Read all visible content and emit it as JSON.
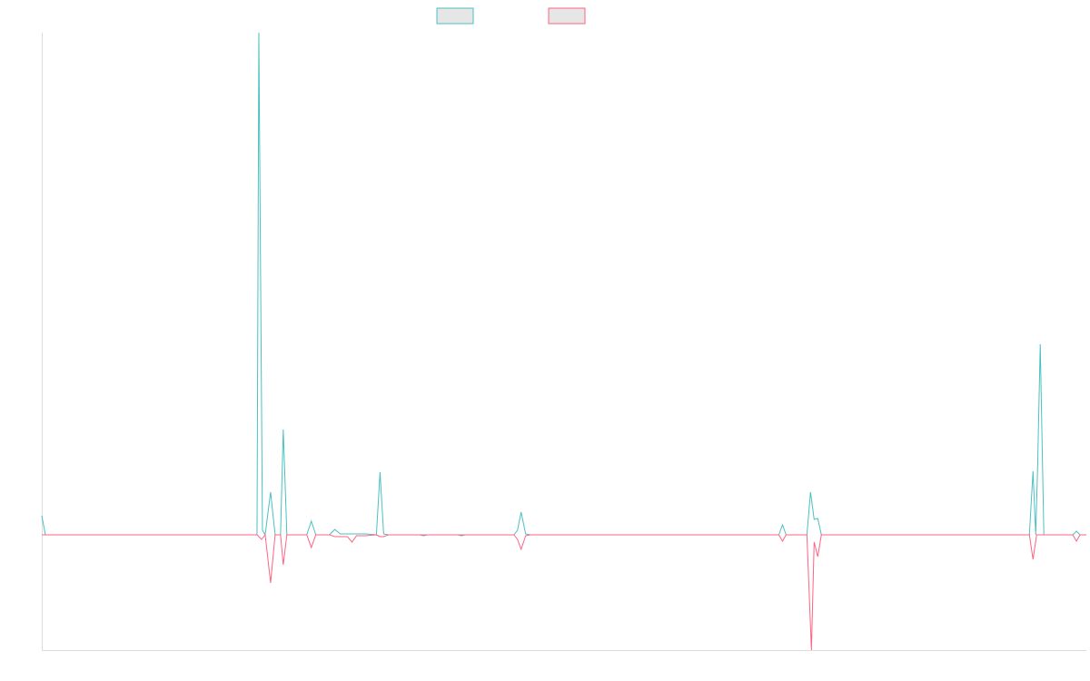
{
  "chart_data": {
    "type": "line",
    "title": "",
    "xlabel": "",
    "ylabel": "",
    "legend": {
      "placement": "top-center",
      "entries": [
        "",
        ""
      ]
    },
    "grid": false,
    "x": [
      0,
      1,
      2,
      3,
      4,
      5,
      6,
      7,
      8,
      9,
      10,
      11,
      12,
      13,
      14,
      15,
      16,
      17,
      18,
      19,
      20,
      21,
      22,
      23,
      24,
      25,
      26,
      27,
      28,
      29,
      30,
      31,
      32,
      33,
      34,
      35,
      36,
      37,
      38,
      39,
      40,
      41,
      42,
      43,
      44,
      45,
      46,
      47,
      48,
      49,
      50,
      51,
      52,
      53,
      54,
      55,
      56,
      57,
      58,
      59,
      60,
      61,
      62,
      63,
      64,
      65,
      66,
      67,
      68,
      69,
      70,
      71,
      72,
      73,
      74,
      75,
      76,
      77,
      78,
      79,
      80,
      81,
      82,
      83,
      84,
      85,
      86,
      87,
      88,
      89,
      90,
      91,
      92,
      93,
      94,
      95,
      96,
      97,
      98,
      99,
      100,
      101,
      102,
      103,
      104,
      105,
      106,
      107,
      108,
      109,
      110,
      111,
      112,
      113,
      114,
      115,
      116,
      117,
      118,
      119,
      120,
      121,
      122,
      123,
      124,
      125,
      126,
      127,
      128,
      129,
      130,
      131,
      132,
      133,
      134,
      135,
      136,
      137,
      138,
      139,
      140,
      141,
      142,
      143,
      144,
      145,
      146,
      147,
      148,
      149,
      150,
      151,
      152,
      153,
      154,
      155,
      156,
      157,
      158,
      159,
      160,
      161,
      162,
      163,
      164,
      165,
      166,
      167,
      168,
      169,
      170,
      171,
      172,
      173,
      174,
      175,
      176,
      177,
      178,
      179,
      180,
      181,
      182,
      183,
      184,
      185,
      186,
      187,
      188,
      189,
      190,
      191,
      192,
      193,
      194,
      195,
      196,
      197,
      198,
      199,
      200,
      201,
      202,
      203,
      204,
      205,
      206,
      207,
      208,
      209,
      210,
      211,
      212,
      213,
      214,
      215,
      216,
      217,
      218,
      219,
      220,
      221,
      222,
      223,
      224,
      225,
      226,
      227,
      228,
      229,
      230,
      231,
      232,
      233,
      234,
      235,
      236,
      237,
      238,
      239,
      240,
      241,
      242,
      243,
      244,
      245,
      246,
      247,
      248,
      249,
      250,
      251,
      252,
      253,
      254,
      255,
      256,
      257,
      258,
      259,
      260,
      261,
      262,
      263,
      264,
      265,
      266,
      267,
      268,
      269,
      270,
      271,
      272,
      273,
      274,
      275,
      276,
      277,
      278,
      279,
      280,
      281,
      282,
      283,
      284,
      285,
      286,
      287,
      288,
      289,
      290,
      291,
      292,
      293,
      294,
      295,
      296,
      297,
      298,
      299,
      300,
      301,
      302,
      303,
      304,
      305,
      306,
      307,
      308,
      309,
      310,
      311,
      312,
      313,
      314,
      315,
      316,
      317,
      318,
      319,
      320,
      321,
      322,
      323,
      324,
      325,
      326,
      327,
      328,
      329,
      330,
      331,
      332,
      333,
      334,
      335,
      336,
      337,
      338,
      339,
      340,
      341,
      342,
      343,
      344,
      345,
      346,
      347,
      348,
      349,
      350,
      351,
      352,
      353,
      354,
      355,
      356,
      357,
      358,
      359,
      360,
      361,
      362,
      363,
      364,
      365,
      366,
      367,
      368,
      369,
      370,
      371,
      372,
      373,
      374,
      375,
      376,
      377,
      378,
      379,
      380,
      381,
      382,
      383,
      384,
      385,
      386,
      387,
      388,
      389,
      390,
      391,
      392,
      393,
      394,
      395,
      396,
      397,
      398,
      399,
      400,
      401,
      402,
      403,
      404,
      405,
      406,
      407,
      408,
      409,
      410,
      411,
      412,
      413,
      414,
      415,
      416,
      417,
      418,
      419,
      420,
      421,
      422,
      423,
      424,
      425,
      426,
      427,
      428,
      429,
      430,
      431,
      432,
      433,
      434,
      435,
      436,
      437,
      438,
      439,
      440,
      441,
      442,
      443,
      444,
      445,
      446,
      447,
      448,
      449,
      450,
      451,
      452,
      453,
      454,
      455,
      456,
      457,
      458,
      459,
      460,
      461,
      462,
      463,
      464,
      465,
      466,
      467,
      468,
      469,
      470,
      471,
      472,
      473,
      474,
      475,
      476,
      477,
      478,
      479,
      480,
      481,
      482,
      483,
      484,
      485,
      486,
      487,
      488,
      489,
      490,
      491,
      492,
      493,
      494,
      495,
      496,
      497,
      498,
      499,
      500,
      501,
      502,
      503,
      504,
      505,
      506,
      507,
      508,
      509,
      510,
      511,
      512,
      513,
      514,
      515,
      516,
      517,
      518,
      519,
      520,
      521,
      522,
      523,
      524,
      525,
      526,
      527,
      528,
      529,
      530,
      531,
      532,
      533,
      534,
      535,
      536,
      537,
      538,
      539,
      540,
      541,
      542,
      543,
      544,
      545,
      546,
      547,
      548,
      549,
      550,
      551,
      552,
      553,
      554,
      555,
      556,
      557,
      558,
      559,
      560,
      561,
      562,
      563,
      564,
      565,
      566,
      567,
      568,
      569,
      570,
      571,
      572,
      573,
      574,
      575,
      576,
      577,
      578,
      579,
      580,
      581,
      582,
      583,
      584,
      585,
      586,
      587,
      588,
      589,
      590,
      591,
      592,
      593,
      594,
      595,
      596,
      597,
      598,
      599,
      600,
      601,
      602,
      603,
      604,
      605,
      606,
      607,
      608,
      609,
      610,
      611,
      612,
      613,
      614,
      615,
      616,
      617,
      618,
      619,
      620,
      621,
      622,
      623,
      624,
      625,
      626,
      627,
      628,
      629,
      630,
      631,
      632,
      633,
      634,
      635,
      636,
      637,
      638,
      639,
      640,
      641,
      642,
      643,
      644,
      645,
      646,
      647,
      648,
      649,
      650,
      651,
      652,
      653,
      654,
      655,
      656,
      657,
      658,
      659,
      660,
      661,
      662,
      663,
      664,
      665,
      666,
      667,
      668,
      669,
      670,
      671,
      672,
      673,
      674,
      675,
      676,
      677,
      678,
      679,
      680,
      681,
      682,
      683,
      684,
      685,
      686,
      687,
      688,
      689,
      690,
      691,
      692,
      693,
      694,
      695,
      696,
      697,
      698,
      699,
      700,
      701,
      702,
      703,
      704,
      705,
      706,
      707,
      708,
      709,
      710,
      711,
      712,
      713,
      714,
      715,
      716,
      717,
      718,
      719,
      720,
      721,
      722,
      723,
      724,
      725,
      726,
      727,
      728,
      729,
      730,
      731,
      732,
      733,
      734,
      735,
      736,
      737,
      738,
      739,
      740,
      741,
      742,
      743,
      744,
      745,
      746,
      747,
      748,
      749,
      750,
      751,
      752,
      753,
      754,
      755,
      756,
      757,
      758,
      759,
      760,
      761,
      762,
      763,
      764,
      765,
      766,
      767,
      768,
      769,
      770,
      771,
      772,
      773,
      774,
      775,
      776,
      777,
      778,
      779,
      780,
      781,
      782,
      783,
      784,
      785,
      786,
      787,
      788,
      789,
      790,
      791,
      792,
      793,
      794,
      795,
      796,
      797,
      798,
      799,
      800,
      801,
      802,
      803,
      804,
      805,
      806,
      807,
      808,
      809,
      810,
      811,
      812,
      813,
      814,
      815,
      816,
      817,
      818,
      819,
      820,
      821,
      822,
      823,
      824,
      825,
      826,
      827,
      828,
      829,
      830,
      831,
      832,
      833,
      834,
      835,
      836,
      837,
      838,
      839,
      840,
      841,
      842,
      843,
      844,
      845,
      846,
      847,
      848,
      849,
      850,
      851,
      852,
      853,
      854,
      855,
      856,
      857,
      858,
      859,
      860,
      861,
      862,
      863,
      864,
      865,
      866,
      867,
      868,
      869,
      870,
      871,
      872,
      873,
      874,
      875,
      876,
      877,
      878,
      879,
      880,
      881,
      882,
      883,
      884,
      885,
      886,
      887,
      888,
      889,
      890,
      891,
      892,
      893,
      894,
      895,
      896,
      897,
      898,
      899,
      900,
      901,
      902,
      903,
      904,
      905,
      906,
      907,
      908,
      909,
      910,
      911,
      912,
      913,
      914,
      915,
      916,
      917,
      918,
      919,
      920,
      921,
      922,
      923,
      924,
      925,
      926,
      927,
      928,
      929,
      930,
      931,
      932,
      933,
      934,
      935,
      936,
      937,
      938,
      939,
      940,
      941,
      942,
      943,
      944,
      945,
      946,
      947,
      948,
      949,
      950,
      951,
      952,
      953,
      954,
      955,
      956,
      957,
      958,
      959,
      960,
      961,
      962,
      963,
      964,
      965,
      966,
      967,
      968,
      969,
      970,
      971,
      972,
      973,
      974,
      975,
      976,
      977,
      978,
      979,
      980,
      981,
      982,
      983,
      984,
      985,
      986,
      987,
      988,
      989,
      990,
      991,
      992,
      993,
      994,
      995,
      996,
      997,
      998,
      999,
      1000,
      1001,
      1002,
      1003,
      1004,
      1005,
      1006,
      1007,
      1008,
      1009,
      1010,
      1011,
      1012,
      1013,
      1014,
      1015,
      1016,
      1017,
      1018,
      1019,
      1020,
      1021,
      1022,
      1023,
      1024,
      1025,
      1026,
      1027,
      1028,
      1029,
      1030,
      1031,
      1032,
      1033,
      1034,
      1035,
      1036,
      1037,
      1038,
      1039,
      1040,
      1041,
      1042,
      1043,
      1044,
      1045,
      1046,
      1047,
      1048,
      1049,
      1050,
      1051,
      1052,
      1053,
      1054,
      1055,
      1056,
      1057,
      1058,
      1059,
      1060,
      1061,
      1062,
      1063,
      1064,
      1065,
      1066,
      1067,
      1068,
      1069,
      1070,
      1071,
      1072,
      1073,
      1074,
      1075,
      1076,
      1077,
      1078,
      1079,
      1080,
      1081,
      1082,
      1083,
      1084,
      1085,
      1086,
      1087,
      1088,
      1089,
      1090,
      1091,
      1092,
      1093,
      1094,
      1095,
      1096,
      1097,
      1098,
      1099,
      1100,
      1101,
      1102,
      1103,
      1104,
      1105,
      1106,
      1107,
      1108,
      1109,
      1110,
      1111,
      1112,
      1113,
      1114,
      1115,
      1116,
      1117,
      1118,
      1119,
      1120,
      1121,
      1122,
      1123,
      1124,
      1125,
      1126,
      1127,
      1128,
      1129,
      1130,
      1131,
      1132,
      1133,
      1134,
      1135,
      1136,
      1137,
      1138,
      1139,
      1140,
      1141,
      1142,
      1143,
      1144,
      1145,
      1146,
      1147,
      1148,
      1149,
      1150,
      1151,
      1152,
      1153,
      1154,
      1155
    ],
    "ylim": [
      -127,
      553
    ],
    "series": [
      {
        "color": "#4bc0c0",
        "points": [
          [
            0,
            21
          ],
          [
            4,
            0
          ],
          [
            238,
            0
          ],
          [
            240,
            553
          ],
          [
            244,
            5
          ],
          [
            247,
            0
          ],
          [
            253,
            47
          ],
          [
            258,
            0
          ],
          [
            264,
            0
          ],
          [
            267,
            116
          ],
          [
            271,
            0
          ],
          [
            293,
            0
          ],
          [
            298,
            15
          ],
          [
            303,
            0
          ],
          [
            318,
            0
          ],
          [
            324,
            6
          ],
          [
            330,
            1
          ],
          [
            338,
            1
          ],
          [
            346,
            1
          ],
          [
            352,
            1
          ],
          [
            358,
            1
          ],
          [
            370,
            0
          ],
          [
            374,
            69
          ],
          [
            378,
            1
          ],
          [
            383,
            0
          ],
          [
            418,
            0
          ],
          [
            426,
            0
          ],
          [
            460,
            0
          ],
          [
            468,
            0
          ],
          [
            522,
            0
          ],
          [
            526,
            5
          ],
          [
            530,
            25
          ],
          [
            535,
            1
          ],
          [
            540,
            0
          ],
          [
            815,
            0
          ],
          [
            819,
            11
          ],
          [
            823,
            0
          ],
          [
            846,
            0
          ],
          [
            850,
            47
          ],
          [
            854,
            17
          ],
          [
            858,
            18
          ],
          [
            862,
            0
          ],
          [
            1092,
            0
          ],
          [
            1096,
            70
          ],
          [
            1099,
            0
          ],
          [
            1101,
            70
          ],
          [
            1104,
            210
          ],
          [
            1108,
            0
          ],
          [
            1140,
            0
          ],
          [
            1144,
            4
          ],
          [
            1148,
            0
          ],
          [
            1155,
            0
          ]
        ]
      },
      {
        "color": "#ff6384",
        "points": [
          [
            0,
            0
          ],
          [
            238,
            0
          ],
          [
            243,
            -5
          ],
          [
            247,
            0
          ],
          [
            253,
            -53
          ],
          [
            258,
            0
          ],
          [
            264,
            0
          ],
          [
            267,
            -33
          ],
          [
            271,
            0
          ],
          [
            293,
            0
          ],
          [
            298,
            -14
          ],
          [
            303,
            0
          ],
          [
            318,
            0
          ],
          [
            324,
            -2
          ],
          [
            330,
            -2
          ],
          [
            338,
            -2
          ],
          [
            343,
            -8
          ],
          [
            348,
            -1
          ],
          [
            352,
            -1
          ],
          [
            358,
            -1
          ],
          [
            370,
            0
          ],
          [
            374,
            -2
          ],
          [
            378,
            -2
          ],
          [
            383,
            0
          ],
          [
            418,
            0
          ],
          [
            422,
            -1
          ],
          [
            426,
            0
          ],
          [
            460,
            0
          ],
          [
            464,
            -1
          ],
          [
            468,
            0
          ],
          [
            522,
            0
          ],
          [
            526,
            -5
          ],
          [
            530,
            -16
          ],
          [
            535,
            -1
          ],
          [
            540,
            0
          ],
          [
            815,
            0
          ],
          [
            819,
            -7
          ],
          [
            823,
            0
          ],
          [
            846,
            0
          ],
          [
            851,
            -127
          ],
          [
            854,
            -8
          ],
          [
            858,
            -24
          ],
          [
            862,
            0
          ],
          [
            1092,
            0
          ],
          [
            1096,
            -27
          ],
          [
            1100,
            0
          ],
          [
            1140,
            0
          ],
          [
            1144,
            -7
          ],
          [
            1148,
            0
          ],
          [
            1155,
            0
          ]
        ]
      }
    ]
  }
}
